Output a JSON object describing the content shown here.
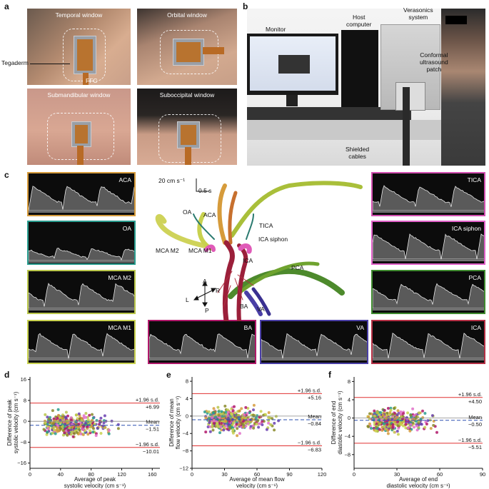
{
  "panels": {
    "a": {
      "label": "a",
      "windows": [
        "Temporal window",
        "Orbital window",
        "Submandibular window",
        "Suboccipital window"
      ],
      "annotations": {
        "tegaderm": "Tegaderm",
        "ffc": "FFC"
      }
    },
    "b": {
      "label": "b",
      "labels": {
        "monitor": "Monitor",
        "host": "Host\ncomputer",
        "verasonics": "Verasonics\nsystem",
        "patch": "Conformal\nultrasound\npatch",
        "cables": "Shielded\ncables"
      }
    },
    "c": {
      "label": "c",
      "spectrograms": [
        {
          "name": "ACA",
          "color": "#d69b3b"
        },
        {
          "name": "OA",
          "color": "#2a9d8f"
        },
        {
          "name": "MCA M2",
          "color": "#b9c64a"
        },
        {
          "name": "MCA M1",
          "color": "#c8d14e"
        },
        {
          "name": "BA",
          "color": "#b0186a"
        },
        {
          "name": "VA",
          "color": "#4a3fa6"
        },
        {
          "name": "ICA",
          "color": "#b53045"
        },
        {
          "name": "TICA",
          "color": "#d24fb0"
        },
        {
          "name": "ICA siphon",
          "color": "#e060c8"
        },
        {
          "name": "PCA",
          "color": "#3f8a2f"
        }
      ],
      "scalebar": {
        "velocity": "20 cm s⁻¹",
        "time": "0.5 s"
      },
      "vessel_labels": [
        "OA",
        "ACA",
        "TICA",
        "ICA siphon",
        "MCA M2",
        "MCA M1",
        "ICA",
        "PCA",
        "BA",
        "VA"
      ],
      "orientation": {
        "a": "A",
        "r": "R",
        "l": "L",
        "p": "P"
      }
    },
    "d": {
      "label": "d"
    },
    "e": {
      "label": "e"
    },
    "f": {
      "label": "f"
    }
  },
  "chart_data": [
    {
      "type": "scatter",
      "title": "",
      "xlabel": "Average of peak systolic velocity (cm s⁻¹)",
      "ylabel": "Difference of peak systolic velocity (cm s⁻¹)",
      "xlim": [
        0,
        170
      ],
      "ylim": [
        -18,
        17
      ],
      "xticks": [
        0,
        40,
        80,
        120,
        160
      ],
      "yticks": [
        16,
        8,
        0,
        -8,
        -16
      ],
      "upper": 6.99,
      "mean": -1.51,
      "lower": -10.01,
      "labels": {
        "upper": "+1.96 s.d.",
        "upper_val": "+6.99",
        "mean": "Mean",
        "mean_val": "−1.51",
        "lower": "−1.96 s.d.",
        "lower_val": "−10.01"
      }
    },
    {
      "type": "scatter",
      "title": "",
      "xlabel": "Average of mean flow velocity (cm s⁻¹)",
      "ylabel": "Difference of mean flow velocity (cm s⁻¹)",
      "xlim": [
        0,
        120
      ],
      "ylim": [
        -12,
        9
      ],
      "xticks": [
        0,
        30,
        60,
        90,
        120
      ],
      "yticks": [
        8,
        4,
        0,
        -4,
        -8,
        -12
      ],
      "upper": 5.16,
      "mean": -0.84,
      "lower": -6.83,
      "labels": {
        "upper": "+1.96 s.d.",
        "upper_val": "+5.16",
        "mean": "Mean",
        "mean_val": "−0.84",
        "lower": "−1.96 s.d.",
        "lower_val": "−6.83"
      }
    },
    {
      "type": "scatter",
      "title": "",
      "xlabel": "Average of end diastolic velocity (cm s⁻¹)",
      "ylabel": "Difference of end diastolic velocity (cm s⁻¹)",
      "xlim": [
        0,
        90
      ],
      "ylim": [
        -11,
        9
      ],
      "xticks": [
        0,
        30,
        60,
        90
      ],
      "yticks": [
        8,
        4,
        0,
        -4,
        -8
      ],
      "upper": 4.5,
      "mean": -0.5,
      "lower": -5.51,
      "labels": {
        "upper": "+1.96 s.d.",
        "upper_val": "+4.50",
        "mean": "Mean",
        "mean_val": "−0.50",
        "lower": "−1.96 s.d.",
        "lower_val": "−5.51"
      }
    }
  ],
  "series_colors": [
    "#2a9d8f",
    "#6a3fb0",
    "#b9c64a",
    "#d69b3b",
    "#e070c8",
    "#8a8a2a",
    "#c8d14e",
    "#b0186a"
  ]
}
